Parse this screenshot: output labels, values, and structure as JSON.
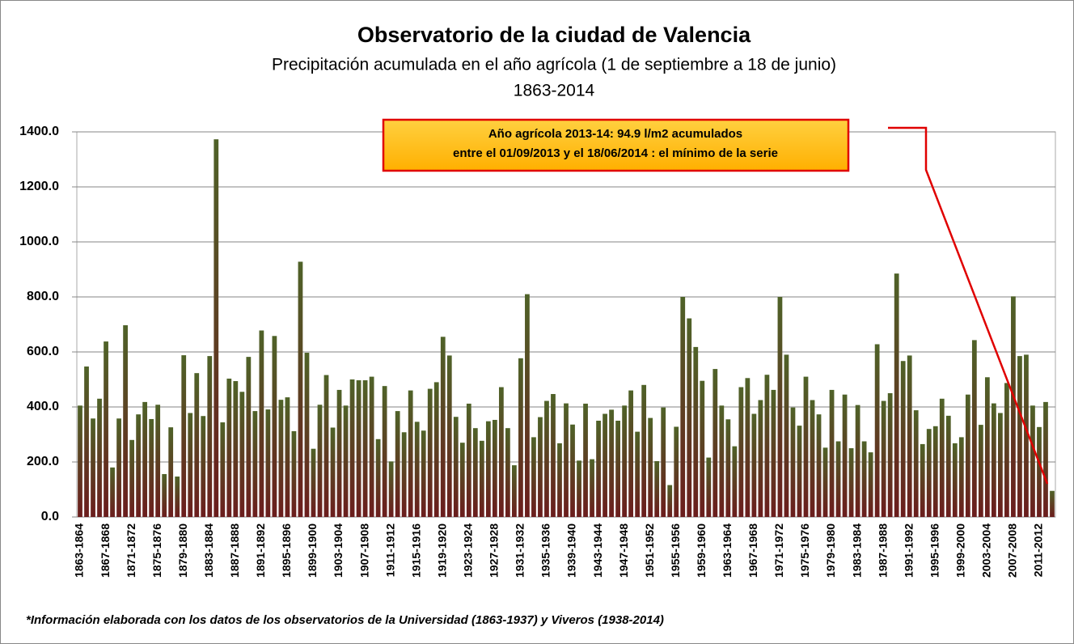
{
  "chart_data": {
    "type": "bar",
    "title": "Observatorio de la ciudad de Valencia",
    "subtitle": "Precipitación acumulada en el año agrícola (1  de septiembre a 18 de junio)",
    "period": "1863-2014",
    "annotation": [
      "Año agrícola 2013-14:  94.9 l/m2 acumulados",
      "entre el  01/09/2013 y  el 18/06/2014 : el mínimo de la serie"
    ],
    "note": "*Información elaborada con los datos de los observatorios de la Universidad (1863-1937) y Viveros (1938-2014)",
    "categories": [
      "1863-1864",
      null,
      null,
      null,
      "1867-1868",
      null,
      null,
      null,
      "1871-1872",
      null,
      null,
      null,
      "1875-1876",
      null,
      null,
      null,
      "1879-1880",
      null,
      null,
      null,
      "1883-1884",
      null,
      null,
      null,
      "1887-1888",
      null,
      null,
      null,
      "1891-1892",
      null,
      null,
      null,
      "1895-1896",
      null,
      null,
      null,
      "1899-1900",
      null,
      null,
      null,
      "1903-1904",
      null,
      null,
      null,
      "1907-1908",
      null,
      null,
      null,
      "1911-1912",
      null,
      null,
      null,
      "1915-1916",
      null,
      null,
      null,
      "1919-1920",
      null,
      null,
      null,
      "1923-1924",
      null,
      null,
      null,
      "1927-1928",
      null,
      null,
      null,
      "1931-1932",
      null,
      null,
      null,
      "1935-1936",
      null,
      null,
      null,
      "1939-1940",
      null,
      null,
      null,
      "1943-1944",
      null,
      null,
      null,
      "1947-1948",
      null,
      null,
      null,
      "1951-1952",
      null,
      null,
      null,
      "1955-1956",
      null,
      null,
      null,
      "1959-1960",
      null,
      null,
      null,
      "1963-1964",
      null,
      null,
      null,
      "1967-1968",
      null,
      null,
      null,
      "1971-1972",
      null,
      null,
      null,
      "1975-1976",
      null,
      null,
      null,
      "1979-1980",
      null,
      null,
      null,
      "1983-1984",
      null,
      null,
      null,
      "1987-1988",
      null,
      null,
      null,
      "1991-1992",
      null,
      null,
      null,
      "1995-1996",
      null,
      null,
      null,
      "1999-2000",
      null,
      null,
      null,
      "2003-2004",
      null,
      null,
      null,
      "2007-2008",
      null,
      null,
      null,
      "2011-2012",
      null,
      null
    ],
    "values": [
      405,
      547,
      358,
      430,
      638,
      180,
      358,
      697,
      280,
      373,
      418,
      356,
      408,
      156,
      326,
      147,
      588,
      378,
      523,
      367,
      585,
      1373,
      344,
      503,
      494,
      455,
      582,
      385,
      678,
      391,
      658,
      426,
      435,
      312,
      928,
      597,
      248,
      408,
      516,
      325,
      462,
      405,
      500,
      497,
      497,
      510,
      283,
      476,
      202,
      385,
      308,
      460,
      346,
      314,
      466,
      490,
      655,
      587,
      364,
      270,
      412,
      323,
      277,
      348,
      353,
      472,
      323,
      188,
      577,
      810,
      290,
      363,
      422,
      447,
      268,
      413,
      336,
      205,
      412,
      210,
      350,
      375,
      390,
      350,
      405,
      460,
      310,
      480,
      360,
      203,
      398,
      116,
      328,
      800,
      722,
      618,
      495,
      216,
      538,
      405,
      355,
      257,
      472,
      505,
      375,
      425,
      517,
      462,
      800,
      590,
      398,
      332,
      510,
      425,
      373,
      252,
      462,
      275,
      445,
      250,
      407,
      275,
      235,
      628,
      422,
      450,
      885,
      567,
      587,
      388,
      265,
      320,
      330,
      430,
      368,
      268,
      290,
      445,
      643,
      335,
      508,
      413,
      378,
      487,
      802,
      585,
      590,
      405,
      327,
      418,
      94.9
    ],
    "colors": [
      "#4f6228",
      "#6b1d1d"
    ],
    "ylim": [
      0,
      1400
    ],
    "yticks": [
      {
        "value": 0,
        "label": "0.0"
      },
      {
        "value": 200,
        "label": "200.0"
      },
      {
        "value": 400,
        "label": "400.0"
      },
      {
        "value": 600,
        "label": "600.0"
      },
      {
        "value": 800,
        "label": "800.0"
      },
      {
        "value": 1000,
        "label": "1000.0"
      },
      {
        "value": 1200,
        "label": "1200.0"
      },
      {
        "value": 1400,
        "label": "1400.0"
      }
    ],
    "grid": true
  }
}
